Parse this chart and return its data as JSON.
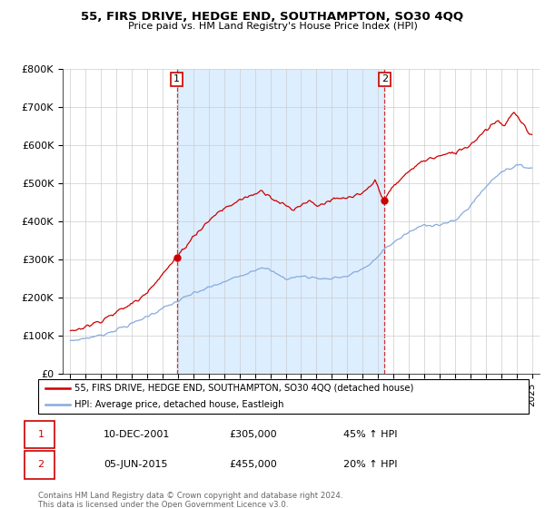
{
  "title": "55, FIRS DRIVE, HEDGE END, SOUTHAMPTON, SO30 4QQ",
  "subtitle": "Price paid vs. HM Land Registry's House Price Index (HPI)",
  "ylim": [
    0,
    800000
  ],
  "yticks": [
    0,
    100000,
    200000,
    300000,
    400000,
    500000,
    600000,
    700000,
    800000
  ],
  "ytick_labels": [
    "£0",
    "£100K",
    "£200K",
    "£300K",
    "£400K",
    "£500K",
    "£600K",
    "£700K",
    "£800K"
  ],
  "red_color": "#cc0000",
  "blue_color": "#88aadd",
  "shade_color": "#ddeeff",
  "marker1_year": 2001.92,
  "marker1_price": 305000,
  "marker1_label": "1",
  "marker2_year": 2015.42,
  "marker2_price": 455000,
  "marker2_label": "2",
  "legend_line1": "55, FIRS DRIVE, HEDGE END, SOUTHAMPTON, SO30 4QQ (detached house)",
  "legend_line2": "HPI: Average price, detached house, Eastleigh",
  "table_row1": [
    "1",
    "10-DEC-2001",
    "£305,000",
    "45% ↑ HPI"
  ],
  "table_row2": [
    "2",
    "05-JUN-2015",
    "£455,000",
    "20% ↑ HPI"
  ],
  "footnote": "Contains HM Land Registry data © Crown copyright and database right 2024.\nThis data is licensed under the Open Government Licence v3.0.",
  "xmin": 1994.5,
  "xmax": 2025.5,
  "xticks": [
    1995,
    1996,
    1997,
    1998,
    1999,
    2000,
    2001,
    2002,
    2003,
    2004,
    2005,
    2006,
    2007,
    2008,
    2009,
    2010,
    2011,
    2012,
    2013,
    2014,
    2015,
    2016,
    2017,
    2018,
    2019,
    2020,
    2021,
    2022,
    2023,
    2024,
    2025
  ]
}
